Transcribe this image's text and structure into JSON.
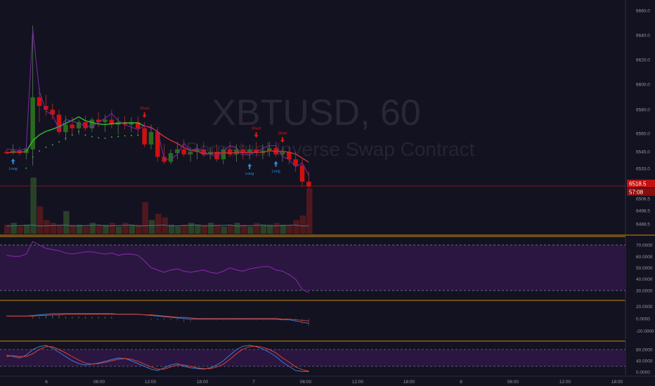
{
  "colors": {
    "background": "#131220",
    "up": "#2a6b1f",
    "down": "#d01010",
    "ma_line": "#d03030",
    "green_line": "#30c030",
    "purple_line": "#7a2aa8",
    "panel_border": "#c88a10",
    "price_line": "#a01818",
    "long_signal": "#2a8ee0",
    "short_signal": "#e01818",
    "oscillator_fill": "#2a1640",
    "rsi_line": "#8a2ab0",
    "blue_line": "#3a7ad8",
    "red_line": "#e04030"
  },
  "watermark": {
    "symbol": "XBTUSD, 60",
    "description": "Perpetual Inverse Swap Contract"
  },
  "price_tag": {
    "price": "6518.5",
    "countdown": "57:08"
  },
  "signals": [
    {
      "type": "long",
      "label": "Long",
      "index": 1
    },
    {
      "type": "short",
      "label": "Short",
      "index": 21
    },
    {
      "type": "long",
      "label": "Long",
      "index": 37
    },
    {
      "type": "short",
      "label": "Short",
      "index": 38
    },
    {
      "type": "long",
      "label": "Long",
      "index": 41
    },
    {
      "type": "short",
      "label": "Short",
      "index": 42
    }
  ],
  "chart_data": [
    {
      "type": "candlestick",
      "panel": "price",
      "y_ticks": [
        "6660.0",
        "6640.0",
        "6620.0",
        "6600.0",
        "6580.0",
        "6560.0",
        "6545.0",
        "6533.0",
        "6506.5",
        "6498.5",
        "6488.5"
      ],
      "last_price": 6518.5,
      "ohlc": [
        [
          6546,
          6548,
          6544,
          6545
        ],
        [
          6545,
          6552,
          6544,
          6547
        ],
        [
          6547,
          6550,
          6543,
          6545
        ],
        [
          6545,
          6552,
          6540,
          6548
        ],
        [
          6548,
          6648,
          6535,
          6590
        ],
        [
          6590,
          6598,
          6570,
          6583
        ],
        [
          6583,
          6592,
          6575,
          6580
        ],
        [
          6580,
          6585,
          6572,
          6576
        ],
        [
          6576,
          6580,
          6560,
          6562
        ],
        [
          6562,
          6575,
          6555,
          6568
        ],
        [
          6568,
          6574,
          6560,
          6565
        ],
        [
          6565,
          6572,
          6560,
          6570
        ],
        [
          6570,
          6575,
          6563,
          6565
        ],
        [
          6565,
          6574,
          6562,
          6572
        ],
        [
          6572,
          6578,
          6566,
          6570
        ],
        [
          6570,
          6576,
          6562,
          6572
        ],
        [
          6572,
          6580,
          6565,
          6568
        ],
        [
          6568,
          6574,
          6560,
          6570
        ],
        [
          6570,
          6575,
          6564,
          6568
        ],
        [
          6568,
          6574,
          6562,
          6570
        ],
        [
          6570,
          6575,
          6560,
          6565
        ],
        [
          6565,
          6570,
          6550,
          6552
        ],
        [
          6552,
          6568,
          6548,
          6562
        ],
        [
          6562,
          6566,
          6538,
          6542
        ],
        [
          6542,
          6552,
          6536,
          6538
        ],
        [
          6538,
          6548,
          6536,
          6545
        ],
        [
          6545,
          6554,
          6540,
          6548
        ],
        [
          6548,
          6556,
          6542,
          6544
        ],
        [
          6544,
          6550,
          6538,
          6546
        ],
        [
          6546,
          6552,
          6540,
          6548
        ],
        [
          6548,
          6554,
          6542,
          6544
        ],
        [
          6544,
          6550,
          6540,
          6546
        ],
        [
          6546,
          6552,
          6538,
          6540
        ],
        [
          6540,
          6550,
          6536,
          6548
        ],
        [
          6548,
          6554,
          6542,
          6544
        ],
        [
          6544,
          6552,
          6538,
          6548
        ],
        [
          6548,
          6552,
          6540,
          6546
        ],
        [
          6546,
          6552,
          6540,
          6548
        ],
        [
          6548,
          6554,
          6542,
          6545
        ],
        [
          6545,
          6552,
          6540,
          6547
        ],
        [
          6547,
          6554,
          6542,
          6549
        ],
        [
          6549,
          6554,
          6542,
          6544
        ],
        [
          6544,
          6550,
          6538,
          6546
        ],
        [
          6546,
          6550,
          6536,
          6540
        ],
        [
          6540,
          6546,
          6530,
          6535
        ],
        [
          6535,
          6540,
          6518,
          6522
        ],
        [
          6522,
          6530,
          6515,
          6518
        ]
      ]
    },
    {
      "type": "bar",
      "panel": "volume",
      "values": [
        10,
        12,
        8,
        10,
        62,
        30,
        15,
        12,
        10,
        25,
        10,
        10,
        8,
        12,
        10,
        10,
        12,
        8,
        12,
        10,
        10,
        35,
        15,
        22,
        18,
        10,
        8,
        10,
        12,
        10,
        10,
        12,
        10,
        8,
        10,
        12,
        10,
        8,
        12,
        10,
        10,
        12,
        10,
        10,
        15,
        20,
        50
      ]
    },
    {
      "type": "line",
      "panel": "rsi",
      "y_ticks": [
        "70.0000",
        "60.0000",
        "50.0000",
        "40.0000",
        "30.0000"
      ],
      "ylim": [
        25,
        75
      ],
      "values": [
        61,
        60,
        60,
        62,
        73,
        70,
        67,
        66,
        65,
        63,
        62,
        63,
        64,
        64,
        63,
        62,
        63,
        61,
        62,
        62,
        61,
        56,
        50,
        48,
        46,
        48,
        49,
        47,
        46,
        47,
        48,
        46,
        45,
        47,
        50,
        48,
        47,
        49,
        50,
        51,
        51,
        48,
        47,
        44,
        40,
        31,
        28
      ]
    },
    {
      "type": "line",
      "panel": "macd",
      "y_ticks": [
        "20.0000",
        "0.0000",
        "-20.0000"
      ],
      "ylim": [
        -30,
        25
      ],
      "series": [
        {
          "values": [
            4,
            4,
            4,
            4,
            5,
            6,
            7,
            8,
            8,
            8,
            8,
            8,
            8,
            8,
            8,
            8,
            8,
            7,
            7,
            7,
            7,
            6,
            5,
            4,
            3,
            2,
            1,
            0,
            -1,
            -1,
            -1,
            -1,
            -1,
            -1,
            -1,
            -1,
            -1,
            -1,
            -1,
            -1,
            -1,
            -1,
            -2,
            -2,
            -4,
            -6,
            -8
          ]
        },
        {
          "values": [
            4,
            4,
            4,
            4,
            4,
            5,
            5,
            6,
            6,
            7,
            7,
            7,
            7,
            7,
            7,
            7,
            7,
            7,
            7,
            7,
            7,
            6,
            6,
            5,
            4,
            3,
            2,
            2,
            1,
            0,
            0,
            0,
            0,
            0,
            0,
            0,
            0,
            0,
            0,
            0,
            0,
            0,
            -1,
            -1,
            -2,
            -3,
            -4
          ]
        }
      ]
    },
    {
      "type": "line",
      "panel": "stochastic",
      "y_ticks": [
        "80.0000",
        "40.0000",
        "0.0000"
      ],
      "ylim": [
        0,
        100
      ],
      "series": [
        {
          "values": [
            60,
            55,
            50,
            60,
            80,
            90,
            95,
            85,
            70,
            55,
            40,
            30,
            25,
            28,
            32,
            38,
            44,
            50,
            48,
            40,
            30,
            20,
            10,
            5,
            15,
            25,
            30,
            20,
            15,
            12,
            10,
            15,
            25,
            40,
            60,
            80,
            92,
            95,
            90,
            82,
            70,
            55,
            35,
            20,
            5,
            2,
            1
          ]
        },
        {
          "values": [
            55,
            58,
            55,
            55,
            65,
            80,
            90,
            90,
            80,
            68,
            55,
            42,
            32,
            28,
            30,
            34,
            40,
            45,
            48,
            45,
            38,
            28,
            18,
            10,
            10,
            18,
            25,
            25,
            20,
            15,
            12,
            12,
            18,
            28,
            45,
            65,
            82,
            90,
            92,
            88,
            80,
            68,
            50,
            35,
            18,
            8,
            3
          ]
        }
      ]
    }
  ],
  "x_axis": {
    "labels": [
      "6",
      "06:00",
      "12:00",
      "18:00",
      "7",
      "06:00",
      "12:00",
      "18:00",
      "8",
      "06:00",
      "12:00",
      "18:00"
    ]
  }
}
